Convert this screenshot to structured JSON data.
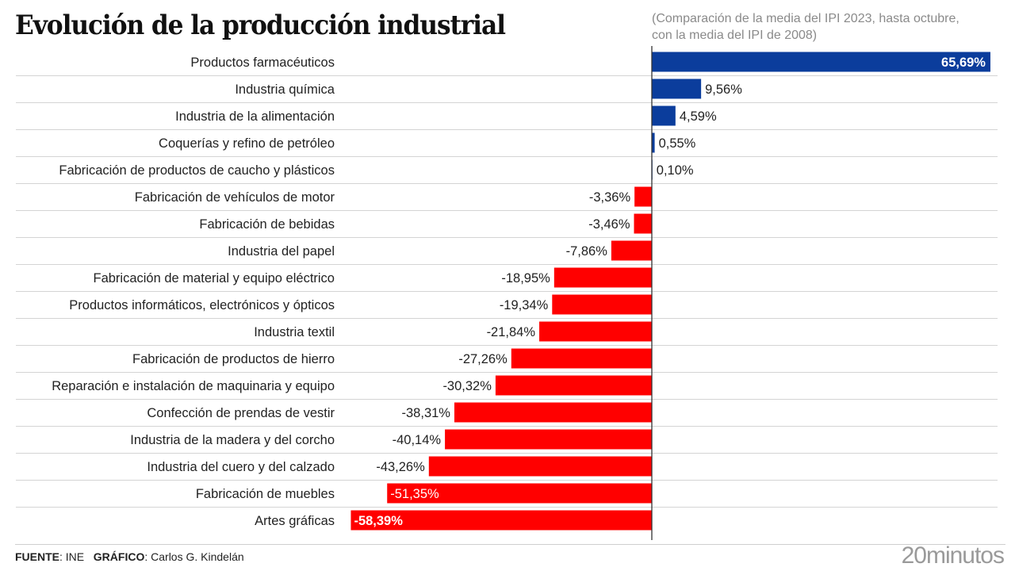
{
  "header": {
    "title": "Evolución de la producción industrial",
    "subtitle_line1": "(Comparación de la media del IPI 2023, hasta octubre,",
    "subtitle_line2": "con la media del IPI de 2008)"
  },
  "footer": {
    "source_label": "FUENTE",
    "source_value": ": INE",
    "graphic_label": "GRÁFICO",
    "graphic_value": ": Carlos G. Kindelán",
    "brand": "20minutos"
  },
  "colors": {
    "positive": "#0b3d9c",
    "negative": "#ff0000",
    "gridline": "#d4d4d4",
    "axis": "#333333"
  },
  "chart_data": {
    "type": "bar",
    "orientation": "horizontal",
    "title": "Evolución de la producción industrial",
    "subtitle": "(Comparación de la media del IPI 2023, hasta octubre, con la media del IPI de 2008)",
    "xlabel": "",
    "ylabel": "",
    "unit": "%",
    "xlim": [
      -58.39,
      65.69
    ],
    "grid": false,
    "legend": "none",
    "categories": [
      "Productos farmacéuticos",
      "Industria química",
      "Industria de la alimentación",
      "Coquerías y refino de petróleo",
      "Fabricación de productos de caucho y plásticos",
      "Fabricación de vehículos de motor",
      "Fabricación de bebidas",
      "Industria del papel",
      "Fabricación de material y equipo eléctrico",
      "Productos informáticos, electrónicos y ópticos",
      "Industria textil",
      "Fabricación de productos de hierro",
      "Reparación e instalación de maquinaria y equipo",
      "Confección de prendas de vestir",
      "Industria de la madera y del corcho",
      "Industria del cuero y del calzado",
      "Fabricación de muebles",
      "Artes gráficas"
    ],
    "values": [
      65.69,
      9.56,
      4.59,
      0.55,
      0.1,
      -3.36,
      -3.46,
      -7.86,
      -18.95,
      -19.34,
      -21.84,
      -27.26,
      -30.32,
      -38.31,
      -40.14,
      -43.26,
      -51.35,
      -58.39
    ],
    "value_labels": [
      "65,69%",
      "9,56%",
      "4,59%",
      "0,55%",
      "0,10%",
      "-3,36%",
      "-3,46%",
      "-7,86%",
      "-18,95%",
      "-19,34%",
      "-21,84%",
      "-27,26%",
      "-30,32%",
      "-38,31%",
      "-40,14%",
      "-43,26%",
      "-51,35%",
      "-58,39%"
    ]
  }
}
